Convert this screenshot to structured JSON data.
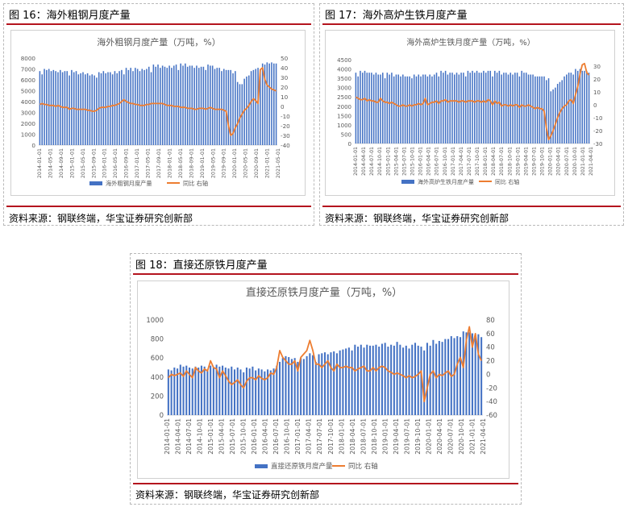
{
  "figures": [
    {
      "id": "fig16",
      "title": "图 16：海外粗钢月度产量",
      "source": "资料来源：钢联终端，华宝证券研究创新部"
    },
    {
      "id": "fig17",
      "title": "图 17：海外高炉生铁月度产量",
      "source": "资料来源：钢联终端，华宝证券研究创新部"
    },
    {
      "id": "fig18",
      "title": "图 18：直接还原铁月度产量",
      "source": "资料来源：钢联终端，华宝证券研究创新部"
    }
  ],
  "colors": {
    "bar": "#4472C4",
    "line": "#ED7D31",
    "rule": "#b4141e",
    "axis_text": "#595959"
  },
  "chart_data": [
    {
      "type": "bar",
      "title": "海外粗钢月度产量（万吨，%）",
      "x_start": "2014-01",
      "x_end": "2021-07",
      "tick_labels": [
        "2014-01-01",
        "2014-05-01",
        "2014-09-01",
        "2015-01-01",
        "2015-05-01",
        "2015-09-01",
        "2016-01-01",
        "2016-05-01",
        "2016-09-01",
        "2017-01-01",
        "2017-05-01",
        "2017-09-01",
        "2018-01-01",
        "2018-05-01",
        "2018-09-01",
        "2019-01-01",
        "2019-05-01",
        "2019-09-01",
        "2020-01-01",
        "2020-05-01",
        "2020-09-01",
        "2021-01-01",
        "2021-05-01"
      ],
      "yleft_ticks": [
        0,
        1000,
        2000,
        3000,
        4000,
        5000,
        6000,
        7000,
        8000
      ],
      "yright_ticks": [
        -40,
        -30,
        -20,
        -10,
        0,
        10,
        20,
        30,
        40,
        50
      ],
      "ylim_left": [
        0,
        8000
      ],
      "ylim_right": [
        -40,
        50
      ],
      "series": [
        {
          "name": "海外粗钢产量",
          "type": "bar",
          "axis": "left",
          "values": [
            6800,
            6500,
            7000,
            6900,
            7000,
            6800,
            6900,
            6800,
            6700,
            6900,
            6700,
            6800,
            6800,
            6400,
            6900,
            6700,
            6800,
            6500,
            6600,
            6700,
            6500,
            6600,
            6400,
            6500,
            6400,
            6200,
            6700,
            6600,
            6800,
            6600,
            6700,
            6700,
            6500,
            6800,
            6600,
            6800,
            6900,
            6500,
            7100,
            6900,
            7100,
            6800,
            7100,
            7000,
            6800,
            7000,
            6900,
            7000,
            7200,
            6700,
            7400,
            7200,
            7400,
            7100,
            7300,
            7200,
            7100,
            7300,
            7100,
            7300,
            7400,
            6900,
            7500,
            7300,
            7500,
            7200,
            7300,
            7300,
            7100,
            7300,
            7100,
            7200,
            7200,
            6900,
            7400,
            7300,
            7300,
            7000,
            7100,
            7100,
            6800,
            7000,
            6900,
            6900,
            6900,
            6600,
            6800,
            5800,
            5600,
            5600,
            6100,
            6300,
            6400,
            6800,
            6900,
            7000,
            7100,
            6900,
            7500,
            7400,
            7600,
            7500,
            7600,
            7500,
            7500
          ]
        },
        {
          "name": "同比 右轴",
          "type": "line",
          "axis": "right",
          "values": [
            2,
            3,
            2,
            2,
            1,
            1,
            1,
            0,
            1,
            0,
            -1,
            -1,
            -1,
            -3,
            -2,
            -2,
            -3,
            -3,
            -3,
            -3,
            -3,
            -4,
            -4,
            -5,
            -5,
            -4,
            -2,
            -1,
            -1,
            -1,
            0,
            0,
            1,
            1,
            2,
            3,
            5,
            7,
            5,
            4,
            3,
            3,
            2,
            2,
            1,
            1,
            1,
            2,
            2,
            3,
            3,
            3,
            3,
            3,
            3,
            2,
            1,
            1,
            1,
            0,
            0,
            0,
            -1,
            -1,
            -1,
            -2,
            -2,
            -2,
            -3,
            -3,
            -2,
            -2,
            -2,
            -3,
            -2,
            -1,
            -2,
            -3,
            -3,
            -3,
            -3,
            -4,
            -5,
            -20,
            -30,
            -28,
            -22,
            -18,
            -12,
            -8,
            -4,
            -2,
            1,
            5,
            8,
            6,
            3,
            38,
            40,
            28,
            22,
            20,
            18,
            17,
            16
          ]
        }
      ]
    },
    {
      "type": "bar",
      "title": "海外高炉生铁月度产量（万吨，%）",
      "x_start": "2014-01",
      "x_end": "2021-07",
      "tick_labels": [
        "2014-01-01",
        "2014-04-01",
        "2014-07-01",
        "2014-10-01",
        "2015-01-01",
        "2015-04-01",
        "2015-07-01",
        "2015-10-01",
        "2016-01-01",
        "2016-04-01",
        "2016-07-01",
        "2016-10-01",
        "2017-01-01",
        "2017-04-01",
        "2017-07-01",
        "2017-10-01",
        "2018-01-01",
        "2018-04-01",
        "2018-07-01",
        "2018-10-01",
        "2019-01-01",
        "2019-04-01",
        "2019-07-01",
        "2019-10-01",
        "2020-01-01",
        "2020-04-01",
        "2020-07-01",
        "2020-10-01",
        "2021-01-01",
        "2021-04-01"
      ],
      "yleft_ticks": [
        0,
        500,
        1000,
        1500,
        2000,
        2500,
        3000,
        3500,
        4000,
        4500
      ],
      "yright_ticks": [
        -30,
        -20,
        -10,
        0,
        10,
        20,
        30
      ],
      "ylim_left": [
        0,
        4500
      ],
      "ylim_right": [
        -30,
        35
      ],
      "series": [
        {
          "name": "海外高炉生铁产量",
          "type": "bar",
          "axis": "left",
          "values": [
            3800,
            3600,
            3900,
            3800,
            3900,
            3800,
            3800,
            3800,
            3700,
            3800,
            3700,
            3700,
            3800,
            3500,
            3800,
            3700,
            3800,
            3600,
            3700,
            3700,
            3600,
            3700,
            3600,
            3600,
            3600,
            3500,
            3700,
            3600,
            3700,
            3600,
            3700,
            3700,
            3600,
            3700,
            3600,
            3700,
            3800,
            3600,
            3900,
            3800,
            3900,
            3700,
            3800,
            3800,
            3700,
            3800,
            3700,
            3800,
            3800,
            3600,
            3900,
            3800,
            3900,
            3800,
            3900,
            3800,
            3800,
            3900,
            3800,
            3900,
            3900,
            3600,
            3900,
            3800,
            3900,
            3700,
            3800,
            3800,
            3700,
            3800,
            3700,
            3800,
            3800,
            3600,
            3900,
            3800,
            3800,
            3700,
            3700,
            3700,
            3600,
            3600,
            3600,
            3600,
            3600,
            3400,
            3500,
            2800,
            2900,
            3000,
            3200,
            3300,
            3400,
            3600,
            3700,
            3800,
            3800,
            3700,
            4000,
            3900,
            4000,
            3900,
            3900,
            3900,
            3800
          ]
        },
        {
          "name": "同比 右轴",
          "type": "line",
          "axis": "right",
          "values": [
            6,
            5,
            4,
            4,
            5,
            3,
            4,
            3,
            3,
            2,
            2,
            5,
            3,
            2,
            2,
            1,
            2,
            1,
            0,
            -1,
            -1,
            0,
            -1,
            -1,
            0,
            -1,
            0,
            0,
            1,
            0,
            1,
            5,
            0,
            1,
            2,
            2,
            3,
            1,
            3,
            3,
            4,
            2,
            3,
            3,
            3,
            3,
            2,
            3,
            3,
            2,
            3,
            3,
            3,
            2,
            3,
            3,
            2,
            3,
            2,
            4,
            3,
            0,
            3,
            1,
            2,
            -1,
            0,
            0,
            -1,
            0,
            -1,
            0,
            0,
            -2,
            0,
            -1,
            -1,
            0,
            -1,
            -2,
            -3,
            -2,
            -3,
            -3,
            -5,
            -18,
            -27,
            -24,
            -20,
            -15,
            -10,
            -6,
            -3,
            -1,
            0,
            3,
            4,
            1,
            8,
            14,
            24,
            31,
            32,
            25,
            23
          ]
        }
      ]
    },
    {
      "type": "bar",
      "title": "直接还原铁月度产量（万吨，%）",
      "x_start": "2014-01",
      "x_end": "2021-07",
      "tick_labels": [
        "2014-01-01",
        "2014-04-01",
        "2014-07-01",
        "2014-10-01",
        "2015-01-01",
        "2015-04-01",
        "2015-07-01",
        "2015-10-01",
        "2016-01-01",
        "2016-04-01",
        "2016-07-01",
        "2016-10-01",
        "2017-01-01",
        "2017-04-01",
        "2017-07-01",
        "2017-10-01",
        "2018-01-01",
        "2018-04-01",
        "2018-07-01",
        "2018-10-01",
        "2019-01-01",
        "2019-04-01",
        "2019-07-01",
        "2019-10-01",
        "2020-01-01",
        "2020-04-01",
        "2020-07-01",
        "2020-10-01",
        "2021-01-01",
        "2021-04-01"
      ],
      "yleft_ticks": [
        0,
        200,
        400,
        600,
        800,
        1000
      ],
      "yright_ticks": [
        -60,
        -40,
        -20,
        0,
        20,
        40,
        60,
        80
      ],
      "ylim_left": [
        0,
        1000
      ],
      "ylim_right": [
        -60,
        80
      ],
      "series": [
        {
          "name": "直接还原铁产量",
          "type": "bar",
          "axis": "left",
          "values": [
            480,
            470,
            500,
            490,
            530,
            510,
            520,
            500,
            490,
            510,
            500,
            520,
            510,
            480,
            520,
            500,
            530,
            510,
            520,
            500,
            490,
            510,
            480,
            500,
            480,
            450,
            500,
            490,
            510,
            470,
            490,
            480,
            460,
            480,
            470,
            490,
            520,
            560,
            600,
            620,
            610,
            590,
            600,
            560,
            600,
            590,
            620,
            650,
            630,
            560,
            640,
            650,
            660,
            640,
            660,
            670,
            650,
            680,
            690,
            700,
            710,
            680,
            740,
            720,
            740,
            710,
            740,
            730,
            730,
            740,
            720,
            750,
            760,
            720,
            740,
            730,
            770,
            740,
            710,
            730,
            700,
            740,
            760,
            730,
            720,
            680,
            760,
            730,
            790,
            750,
            780,
            770,
            800,
            800,
            830,
            810,
            830,
            820,
            880,
            870,
            870,
            860,
            850,
            850,
            820
          ]
        },
        {
          "name": "同比 右轴",
          "type": "line",
          "axis": "right",
          "values": [
            -5,
            0,
            -2,
            0,
            2,
            -3,
            5,
            0,
            -5,
            10,
            5,
            2,
            8,
            5,
            20,
            10,
            8,
            -5,
            5,
            -2,
            -10,
            -15,
            -12,
            -8,
            -15,
            -20,
            -10,
            -5,
            -5,
            -8,
            -2,
            -6,
            -8,
            -5,
            2,
            0,
            10,
            35,
            25,
            20,
            15,
            15,
            20,
            5,
            25,
            30,
            35,
            50,
            35,
            15,
            15,
            10,
            15,
            20,
            10,
            5,
            15,
            10,
            10,
            12,
            10,
            10,
            5,
            8,
            10,
            12,
            5,
            5,
            10,
            5,
            10,
            12,
            10,
            5,
            3,
            0,
            2,
            0,
            -2,
            -5,
            -2,
            -5,
            -3,
            0,
            5,
            -40,
            -20,
            0,
            5,
            -5,
            0,
            -2,
            2,
            5,
            -3,
            0,
            15,
            25,
            10,
            50,
            70,
            40,
            60,
            30,
            20
          ]
        }
      ]
    }
  ],
  "legend": {
    "fig16": [
      "海外粗钢月度产量",
      "同比 右轴"
    ],
    "fig17": [
      "海外高炉生铁月度产量",
      "同比 右轴"
    ],
    "fig18": [
      "直接还原铁月度产量",
      "同比 右轴"
    ]
  }
}
